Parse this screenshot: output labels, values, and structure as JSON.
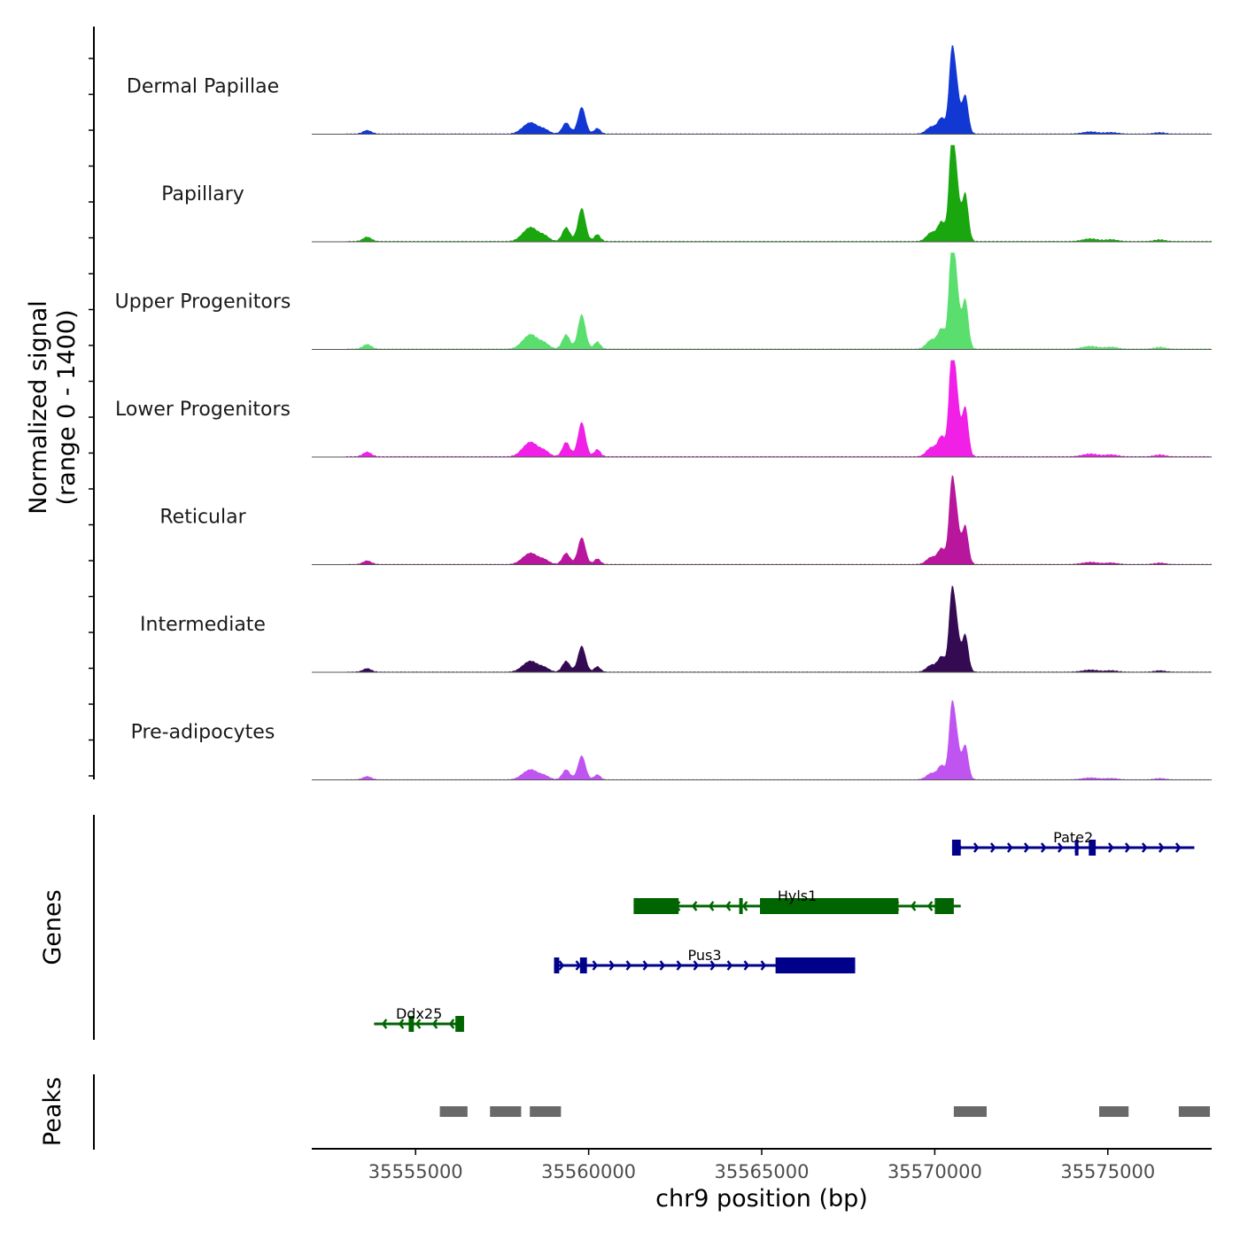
{
  "chart_data": {
    "type": "area",
    "title": "",
    "ylabel_line1": "Normalized signal",
    "ylabel_line2": "(range 0 - 1400)",
    "y_range": [
      0,
      1400
    ],
    "xlabel": "chr9 position (bp)",
    "x_range": [
      35552000,
      35578000
    ],
    "x_ticks": [
      35555000,
      35560000,
      35565000,
      35570000,
      35575000
    ],
    "x_tick_labels": [
      "35555000",
      "35560000",
      "35565000",
      "35570000",
      "35575000"
    ],
    "peak_shape": [
      {
        "center": 35553600,
        "width": 120,
        "rel": 0.05
      },
      {
        "center": 35558200,
        "width": 180,
        "rel": 0.1
      },
      {
        "center": 35558400,
        "width": 150,
        "rel": 0.09
      },
      {
        "center": 35558700,
        "width": 150,
        "rel": 0.07
      },
      {
        "center": 35559350,
        "width": 110,
        "rel": 0.16
      },
      {
        "center": 35559800,
        "width": 110,
        "rel": 0.38
      },
      {
        "center": 35560250,
        "width": 90,
        "rel": 0.08
      },
      {
        "center": 35569900,
        "width": 140,
        "rel": 0.1
      },
      {
        "center": 35570200,
        "width": 110,
        "rel": 0.22
      },
      {
        "center": 35570480,
        "width": 80,
        "rel": 1.0
      },
      {
        "center": 35570620,
        "width": 90,
        "rel": 0.7
      },
      {
        "center": 35570880,
        "width": 90,
        "rel": 0.55
      },
      {
        "center": 35574500,
        "width": 220,
        "rel": 0.03
      },
      {
        "center": 35575100,
        "width": 180,
        "rel": 0.02
      },
      {
        "center": 35576500,
        "width": 150,
        "rel": 0.02
      }
    ],
    "tracks": [
      {
        "name": "Dermal Papillae",
        "color": "#1238d4",
        "max": 0.95
      },
      {
        "name": "Papillary",
        "color": "#19a60f",
        "max": 1.18
      },
      {
        "name": "Upper Progenitors",
        "color": "#5adf6f",
        "max": 1.22
      },
      {
        "name": "Lower Progenitors",
        "color": "#f020e6",
        "max": 1.22
      },
      {
        "name": "Reticular",
        "color": "#b8169c",
        "max": 0.95
      },
      {
        "name": "Intermediate",
        "color": "#340a52",
        "max": 0.92
      },
      {
        "name": "Pre-adipocytes",
        "color": "#c054f0",
        "max": 0.85
      }
    ],
    "genes_label": "Genes",
    "genes": [
      {
        "name": "Pate2",
        "color": "#00008b",
        "strand": "+",
        "start": 35570500,
        "end": 35577500,
        "exons": [
          [
            35570500,
            35570750
          ],
          [
            35574050,
            35574150
          ],
          [
            35574450,
            35574650
          ]
        ]
      },
      {
        "name": "Hyls1",
        "color": "#006400",
        "strand": "-",
        "start": 35561300,
        "end": 35570750,
        "exons": [
          [
            35561300,
            35562600
          ],
          [
            35564350,
            35564450
          ],
          [
            35564950,
            35568950
          ],
          [
            35570000,
            35570550
          ]
        ]
      },
      {
        "name": "Pus3",
        "color": "#00008b",
        "strand": "+",
        "start": 35559000,
        "end": 35567700,
        "exons": [
          [
            35559000,
            35559150
          ],
          [
            35559750,
            35559950
          ],
          [
            35565400,
            35567700
          ]
        ]
      },
      {
        "name": "Ddx25",
        "color": "#006400",
        "strand": "-",
        "start": 35553800,
        "end": 35556400,
        "exons": [
          [
            35554800,
            35554950
          ],
          [
            35556150,
            35556400
          ]
        ]
      }
    ],
    "peaks_label": "Peaks",
    "peaks": [
      [
        35555700,
        35556500
      ],
      [
        35557150,
        35558050
      ],
      [
        35558300,
        35559200
      ],
      [
        35570550,
        35571500
      ],
      [
        35574750,
        35575600
      ],
      [
        35577050,
        35577950
      ]
    ],
    "peak_color": "#696969"
  }
}
